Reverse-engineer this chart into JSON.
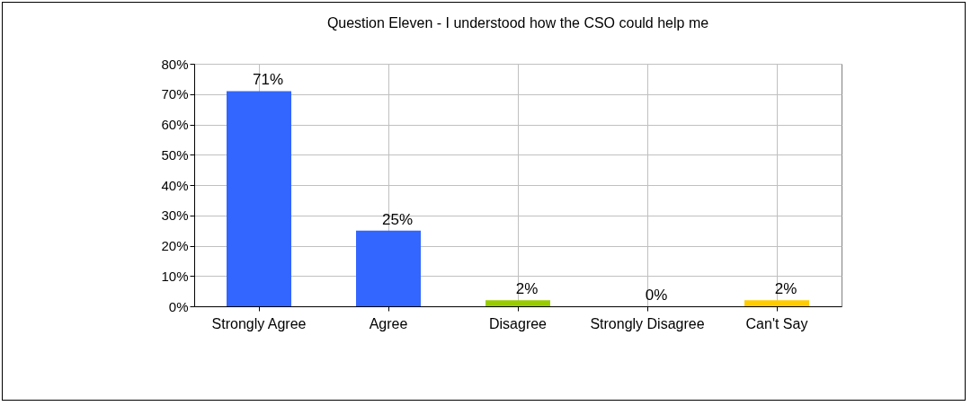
{
  "chart_data": {
    "type": "bar",
    "title": "Question Eleven - I understood how the CSO could help me",
    "categories": [
      "Strongly Agree",
      "Agree",
      "Disagree",
      "Strongly Disagree",
      "Can't Say"
    ],
    "values": [
      71,
      25,
      2,
      0,
      2
    ],
    "colors": [
      "#3366ff",
      "#3366ff",
      "#99cc00",
      "#669900",
      "#ffcc00"
    ],
    "value_labels": [
      "71%",
      "25%",
      "2%",
      "0%",
      "2%"
    ],
    "ylim": [
      0,
      80
    ],
    "yticks": [
      {
        "value": 0,
        "label": "0%"
      },
      {
        "value": 10,
        "label": "10%"
      },
      {
        "value": 20,
        "label": "20%"
      },
      {
        "value": 30,
        "label": "30%"
      },
      {
        "value": 40,
        "label": "40%"
      },
      {
        "value": 50,
        "label": "50%"
      },
      {
        "value": 60,
        "label": "60%"
      },
      {
        "value": 70,
        "label": "70%"
      },
      {
        "value": 80,
        "label": "80%"
      }
    ],
    "grid": true
  }
}
